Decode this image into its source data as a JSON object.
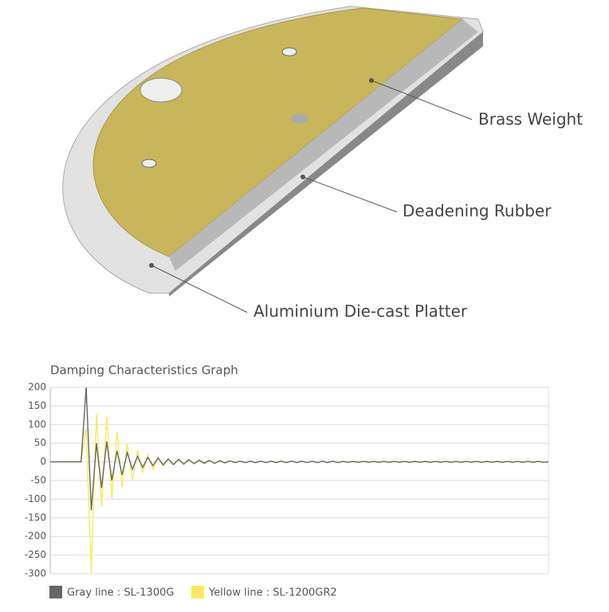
{
  "illustration": {
    "labels": [
      "Brass Weight",
      "Deadening Rubber",
      "Aluminium Die-cast Platter"
    ]
  },
  "chart_data": {
    "type": "line",
    "title": "Damping Characteristics Graph",
    "ylim": [
      -300,
      200
    ],
    "yticks": [
      200,
      150,
      100,
      50,
      0,
      -50,
      -100,
      -150,
      -200,
      -250,
      -300
    ],
    "grid": true,
    "series": [
      {
        "name": "Yellow line : SL-1200GR2",
        "color": "#f2ee5c",
        "values": [
          0,
          0,
          0,
          0,
          0,
          0,
          0,
          90,
          -300,
          130,
          -120,
          120,
          -100,
          80,
          -70,
          50,
          -50,
          30,
          -30,
          20,
          -20,
          12,
          -12,
          8,
          -8,
          6,
          -6,
          4,
          -4,
          3,
          -3,
          3,
          -3,
          2,
          -2,
          2,
          -2,
          2,
          -2,
          2,
          -2,
          2,
          -2,
          2,
          -2,
          2,
          -2,
          2,
          -2,
          2,
          -2,
          2,
          -2,
          2,
          -2,
          2,
          -2,
          2,
          -2,
          2,
          -2,
          2,
          -2,
          2,
          -2,
          2,
          -2,
          2,
          -2,
          2,
          -2,
          2,
          -2,
          2,
          -2,
          2,
          -2,
          2,
          -2,
          2,
          -2,
          2,
          -2,
          2,
          -2,
          2,
          -2,
          2,
          -2,
          2,
          -2,
          2,
          -2,
          2,
          -2,
          2,
          -2,
          0
        ]
      },
      {
        "name": "Gray line : SL-1300G",
        "color": "#666666",
        "values": [
          0,
          0,
          0,
          0,
          0,
          0,
          0,
          200,
          -130,
          50,
          -70,
          55,
          -50,
          30,
          -35,
          25,
          -20,
          15,
          -15,
          12,
          -10,
          10,
          -8,
          8,
          -7,
          7,
          -6,
          6,
          -5,
          5,
          -4,
          4,
          -4,
          3,
          -3,
          3,
          -2,
          2,
          -2,
          2,
          -2,
          2,
          -2,
          2,
          -2,
          2,
          -2,
          2,
          -2,
          2,
          -2,
          2,
          -2,
          2,
          -2,
          2,
          -2,
          1,
          -1,
          1,
          -1,
          1,
          -1,
          1,
          -1,
          1,
          -1,
          1,
          -1,
          1,
          -1,
          1,
          -1,
          1,
          -1,
          1,
          -1,
          1,
          -1,
          1,
          -1,
          1,
          -1,
          1,
          -1,
          1,
          -1,
          1,
          -1,
          1,
          -1,
          1,
          -1,
          1,
          -1,
          1,
          -1,
          0
        ]
      }
    ]
  }
}
